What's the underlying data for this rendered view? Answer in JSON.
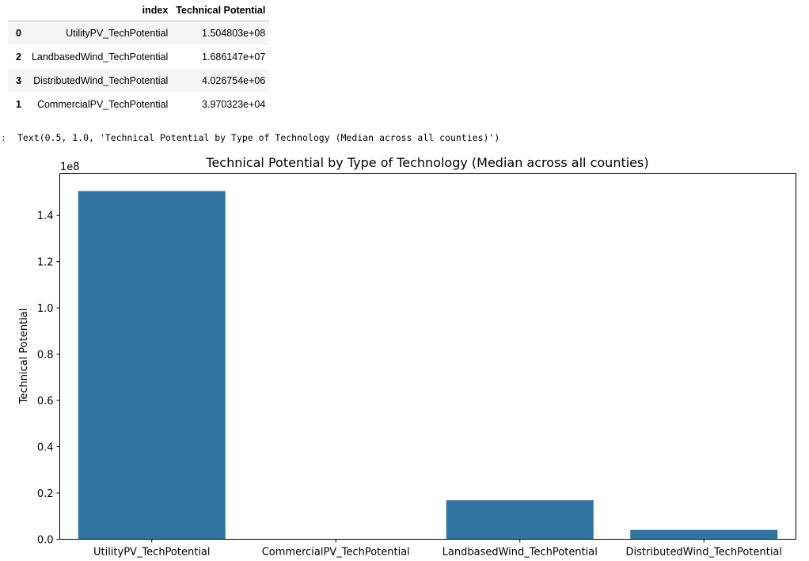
{
  "table": {
    "columns": [
      "index",
      "Technical Potential"
    ],
    "rows": [
      {
        "row_index": "0",
        "index": "UtilityPV_TechPotential",
        "value": "1.504803e+08"
      },
      {
        "row_index": "2",
        "index": "LandbasedWind_TechPotential",
        "value": "1.686147e+07"
      },
      {
        "row_index": "3",
        "index": "DistributedWind_TechPotential",
        "value": "4.026754e+06"
      },
      {
        "row_index": "1",
        "index": "CommercialPV_TechPotential",
        "value": "3.970323e+04"
      }
    ]
  },
  "output": {
    "prompt": ":",
    "text": "Text(0.5, 1.0, 'Technical Potential by Type of Technology (Median across all counties)')"
  },
  "chart_data": {
    "type": "bar",
    "title": "Technical Potential by Type of Technology (Median across all counties)",
    "xlabel": "",
    "ylabel": "Technical Potential",
    "offset_label": "1e8",
    "categories": [
      "UtilityPV_TechPotential",
      "CommercialPV_TechPotential",
      "LandbasedWind_TechPotential",
      "DistributedWind_TechPotential"
    ],
    "values": [
      150480300,
      39703.23,
      16861470,
      4026754
    ],
    "ylim": [
      0,
      158000000
    ],
    "yticks": [
      0,
      20000000,
      40000000,
      60000000,
      80000000,
      100000000,
      120000000,
      140000000
    ],
    "ytick_labels": [
      "0.0",
      "0.2",
      "0.4",
      "0.6",
      "0.8",
      "1.0",
      "1.2",
      "1.4"
    ],
    "bar_color": "#3274a1",
    "grid": false,
    "legend": "none"
  }
}
